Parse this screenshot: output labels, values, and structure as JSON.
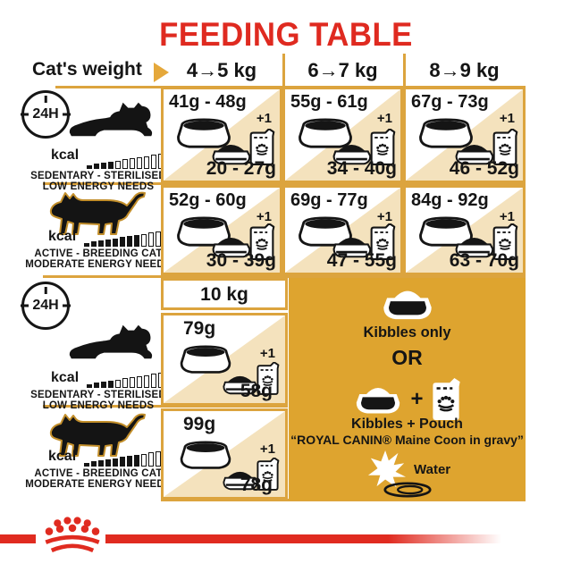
{
  "title": "FEEDING TABLE",
  "colors": {
    "brand_red": "#E02B20",
    "gold_line": "#DCA43E",
    "beige": "#F4E2BD",
    "panel_gold": "#DEA42F",
    "text_black": "#151515"
  },
  "header": {
    "weight_label": "Cat's weight",
    "columns": [
      "4→5 kg",
      "6→7 kg",
      "8→9 kg"
    ]
  },
  "clock": {
    "label": "24H"
  },
  "plus_one": "+1",
  "profiles": {
    "sedentary": {
      "kcal_label": "kcal",
      "bars_total": 13,
      "bars_filled": 4,
      "line1": "SEDENTARY - STERILISED",
      "line2": "LOW ENERGY NEEDS"
    },
    "active": {
      "kcal_label": "kcal",
      "bars_total": 13,
      "bars_filled": 8,
      "line1": "ACTIVE - BREEDING CAT",
      "line2": "MODERATE ENERGY NEEDS"
    }
  },
  "section1": {
    "rows": [
      {
        "profile": "sedentary",
        "cells": [
          {
            "kibble": "41g - 48g",
            "mix": "20 - 27g"
          },
          {
            "kibble": "55g - 61g",
            "mix": "34 - 40g"
          },
          {
            "kibble": "67g - 73g",
            "mix": "46 - 52g"
          }
        ]
      },
      {
        "profile": "active",
        "cells": [
          {
            "kibble": "52g - 60g",
            "mix": "30 - 39g"
          },
          {
            "kibble": "69g - 77g",
            "mix": "47 - 55g"
          },
          {
            "kibble": "84g - 92g",
            "mix": "63 - 70g"
          }
        ]
      }
    ]
  },
  "section2": {
    "column_header": "10 kg",
    "rows": [
      {
        "profile": "sedentary",
        "kibble": "79g",
        "mix": "58g"
      },
      {
        "profile": "active",
        "kibble": "99g",
        "mix": "78g"
      }
    ]
  },
  "panel": {
    "kibbles_only": "Kibbles only",
    "or_label": "OR",
    "plus_sign": "+",
    "mix_line1": "Kibbles + Pouch",
    "mix_line2": "“ROYAL CANIN® Maine Coon in gravy”",
    "water_label": "Water"
  },
  "chart_data": {
    "type": "table",
    "title": "FEEDING TABLE",
    "columns": [
      "Cat's weight",
      "4→5 kg",
      "6→7 kg",
      "8→9 kg",
      "10 kg"
    ],
    "rows": [
      {
        "profile": "SEDENTARY - STERILISED / LOW ENERGY NEEDS",
        "period": "24H",
        "kibbles_only": {
          "4-5kg": "41g - 48g",
          "6-7kg": "55g - 61g",
          "8-9kg": "67g - 73g",
          "10kg": "79g"
        },
        "kibbles_plus_pouch": {
          "4-5kg": "20 - 27g",
          "6-7kg": "34 - 40g",
          "8-9kg": "46 - 52g",
          "10kg": "58g"
        }
      },
      {
        "profile": "ACTIVE - BREEDING CAT / MODERATE ENERGY NEEDS",
        "period": "24H",
        "kibbles_only": {
          "4-5kg": "52g - 60g",
          "6-7kg": "69g - 77g",
          "8-9kg": "84g - 92g",
          "10kg": "99g"
        },
        "kibbles_plus_pouch": {
          "4-5kg": "30 - 39g",
          "6-7kg": "47 - 55g",
          "8-9kg": "63 - 70g",
          "10kg": "78g"
        }
      }
    ],
    "notes": [
      "Kibbles only",
      "OR",
      "Kibbles + Pouch “ROYAL CANIN® Maine Coon in gravy”",
      "Water"
    ]
  }
}
